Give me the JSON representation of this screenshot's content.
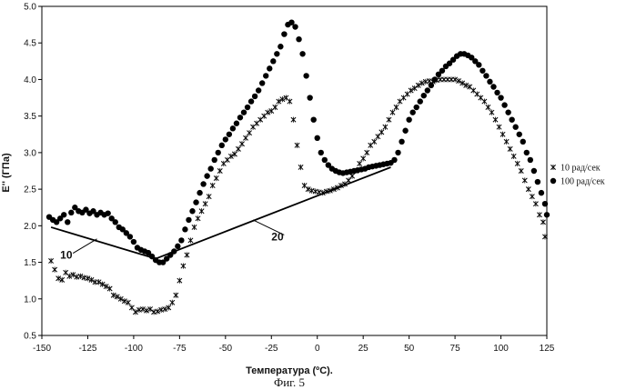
{
  "chart_data": {
    "type": "scatter",
    "xlabel": "Температура (ºC).",
    "ylabel": "E'' (ГПа)",
    "caption": "Фиг. 5",
    "xlim": [
      -150,
      125
    ],
    "ylim": [
      0.5,
      5.0
    ],
    "x_ticks": [
      "-150",
      "-125",
      "-100",
      "-75",
      "-50",
      "-25",
      "0",
      "25",
      "50",
      "75",
      "100",
      "125"
    ],
    "y_ticks": [
      "0.5",
      "1.0",
      "1.5",
      "2.0",
      "2.5",
      "3.0",
      "3.5",
      "4.0",
      "4.5",
      "5.0"
    ],
    "grid": false,
    "legend_position": "right",
    "series": [
      {
        "name": "10 рад/сек",
        "marker": "cross",
        "points": [
          [
            -145,
            1.52
          ],
          [
            -143,
            1.4
          ],
          [
            -141,
            1.28
          ],
          [
            -139,
            1.26
          ],
          [
            -137,
            1.36
          ],
          [
            -135,
            1.31
          ],
          [
            -133,
            1.33
          ],
          [
            -131,
            1.3
          ],
          [
            -129,
            1.31
          ],
          [
            -127,
            1.29
          ],
          [
            -125,
            1.28
          ],
          [
            -123,
            1.26
          ],
          [
            -121,
            1.23
          ],
          [
            -119,
            1.23
          ],
          [
            -117,
            1.2
          ],
          [
            -115,
            1.17
          ],
          [
            -113,
            1.14
          ],
          [
            -111,
            1.05
          ],
          [
            -109,
            1.03
          ],
          [
            -107,
            1.0
          ],
          [
            -105,
            0.97
          ],
          [
            -103,
            0.95
          ],
          [
            -101,
            0.88
          ],
          [
            -99,
            0.82
          ],
          [
            -97,
            0.85
          ],
          [
            -95,
            0.86
          ],
          [
            -93,
            0.84
          ],
          [
            -91,
            0.86
          ],
          [
            -89,
            0.82
          ],
          [
            -87,
            0.83
          ],
          [
            -85,
            0.85
          ],
          [
            -83,
            0.86
          ],
          [
            -81,
            0.88
          ],
          [
            -79,
            0.95
          ],
          [
            -77,
            1.05
          ],
          [
            -75,
            1.25
          ],
          [
            -73,
            1.45
          ],
          [
            -71,
            1.6
          ],
          [
            -69,
            1.8
          ],
          [
            -67,
            1.98
          ],
          [
            -65,
            2.1
          ],
          [
            -63,
            2.2
          ],
          [
            -61,
            2.3
          ],
          [
            -59,
            2.4
          ],
          [
            -57,
            2.55
          ],
          [
            -55,
            2.65
          ],
          [
            -53,
            2.75
          ],
          [
            -51,
            2.85
          ],
          [
            -49,
            2.9
          ],
          [
            -47,
            2.95
          ],
          [
            -45,
            2.98
          ],
          [
            -43,
            3.05
          ],
          [
            -41,
            3.12
          ],
          [
            -39,
            3.2
          ],
          [
            -37,
            3.27
          ],
          [
            -35,
            3.35
          ],
          [
            -33,
            3.4
          ],
          [
            -31,
            3.45
          ],
          [
            -29,
            3.5
          ],
          [
            -27,
            3.55
          ],
          [
            -25,
            3.57
          ],
          [
            -23,
            3.62
          ],
          [
            -21,
            3.7
          ],
          [
            -19,
            3.73
          ],
          [
            -17,
            3.75
          ],
          [
            -15,
            3.7
          ],
          [
            -13,
            3.45
          ],
          [
            -11,
            3.1
          ],
          [
            -9,
            2.8
          ],
          [
            -7,
            2.55
          ],
          [
            -5,
            2.5
          ],
          [
            -3,
            2.48
          ],
          [
            -1,
            2.47
          ],
          [
            1,
            2.46
          ],
          [
            3,
            2.45
          ],
          [
            5,
            2.47
          ],
          [
            7,
            2.48
          ],
          [
            9,
            2.5
          ],
          [
            11,
            2.52
          ],
          [
            13,
            2.55
          ],
          [
            15,
            2.57
          ],
          [
            17,
            2.62
          ],
          [
            19,
            2.68
          ],
          [
            21,
            2.75
          ],
          [
            23,
            2.85
          ],
          [
            25,
            2.92
          ],
          [
            27,
            3.0
          ],
          [
            29,
            3.1
          ],
          [
            31,
            3.15
          ],
          [
            33,
            3.22
          ],
          [
            35,
            3.28
          ],
          [
            37,
            3.35
          ],
          [
            39,
            3.45
          ],
          [
            41,
            3.55
          ],
          [
            43,
            3.62
          ],
          [
            45,
            3.7
          ],
          [
            47,
            3.75
          ],
          [
            49,
            3.8
          ],
          [
            51,
            3.85
          ],
          [
            53,
            3.88
          ],
          [
            55,
            3.92
          ],
          [
            57,
            3.95
          ],
          [
            59,
            3.97
          ],
          [
            61,
            3.98
          ],
          [
            63,
            3.97
          ],
          [
            65,
            3.99
          ],
          [
            67,
            4.0
          ],
          [
            69,
            4.0
          ],
          [
            71,
            4.0
          ],
          [
            73,
            4.0
          ],
          [
            75,
            4.0
          ],
          [
            77,
            3.98
          ],
          [
            79,
            3.95
          ],
          [
            81,
            3.92
          ],
          [
            83,
            3.9
          ],
          [
            85,
            3.85
          ],
          [
            87,
            3.8
          ],
          [
            89,
            3.75
          ],
          [
            91,
            3.7
          ],
          [
            93,
            3.62
          ],
          [
            95,
            3.55
          ],
          [
            97,
            3.45
          ],
          [
            99,
            3.35
          ],
          [
            101,
            3.25
          ],
          [
            103,
            3.15
          ],
          [
            105,
            3.05
          ],
          [
            107,
            2.95
          ],
          [
            109,
            2.85
          ],
          [
            111,
            2.75
          ],
          [
            113,
            2.62
          ],
          [
            115,
            2.5
          ],
          [
            117,
            2.4
          ],
          [
            119,
            2.3
          ],
          [
            121,
            2.15
          ],
          [
            123,
            2.05
          ],
          [
            124,
            1.85
          ]
        ]
      },
      {
        "name": "100 рад/сек",
        "marker": "dot",
        "points": [
          [
            -146,
            2.12
          ],
          [
            -144,
            2.08
          ],
          [
            -142,
            2.05
          ],
          [
            -140,
            2.1
          ],
          [
            -138,
            2.15
          ],
          [
            -136,
            2.05
          ],
          [
            -134,
            2.18
          ],
          [
            -132,
            2.25
          ],
          [
            -130,
            2.2
          ],
          [
            -128,
            2.18
          ],
          [
            -126,
            2.22
          ],
          [
            -124,
            2.17
          ],
          [
            -122,
            2.2
          ],
          [
            -120,
            2.15
          ],
          [
            -118,
            2.18
          ],
          [
            -116,
            2.15
          ],
          [
            -114,
            2.17
          ],
          [
            -112,
            2.1
          ],
          [
            -110,
            2.05
          ],
          [
            -108,
            1.98
          ],
          [
            -106,
            1.95
          ],
          [
            -104,
            1.9
          ],
          [
            -102,
            1.85
          ],
          [
            -100,
            1.78
          ],
          [
            -98,
            1.7
          ],
          [
            -96,
            1.67
          ],
          [
            -94,
            1.65
          ],
          [
            -92,
            1.63
          ],
          [
            -90,
            1.58
          ],
          [
            -88,
            1.53
          ],
          [
            -86,
            1.5
          ],
          [
            -84,
            1.5
          ],
          [
            -82,
            1.55
          ],
          [
            -80,
            1.6
          ],
          [
            -78,
            1.65
          ],
          [
            -76,
            1.72
          ],
          [
            -74,
            1.8
          ],
          [
            -72,
            1.95
          ],
          [
            -70,
            2.08
          ],
          [
            -68,
            2.2
          ],
          [
            -66,
            2.32
          ],
          [
            -64,
            2.45
          ],
          [
            -62,
            2.57
          ],
          [
            -60,
            2.68
          ],
          [
            -58,
            2.78
          ],
          [
            -56,
            2.9
          ],
          [
            -54,
            3.0
          ],
          [
            -52,
            3.1
          ],
          [
            -50,
            3.18
          ],
          [
            -48,
            3.25
          ],
          [
            -46,
            3.33
          ],
          [
            -44,
            3.4
          ],
          [
            -42,
            3.48
          ],
          [
            -40,
            3.55
          ],
          [
            -38,
            3.62
          ],
          [
            -36,
            3.7
          ],
          [
            -34,
            3.77
          ],
          [
            -32,
            3.85
          ],
          [
            -30,
            3.95
          ],
          [
            -28,
            4.05
          ],
          [
            -26,
            4.15
          ],
          [
            -24,
            4.25
          ],
          [
            -22,
            4.35
          ],
          [
            -20,
            4.45
          ],
          [
            -18,
            4.62
          ],
          [
            -16,
            4.75
          ],
          [
            -14,
            4.78
          ],
          [
            -12,
            4.72
          ],
          [
            -10,
            4.55
          ],
          [
            -8,
            4.35
          ],
          [
            -6,
            4.05
          ],
          [
            -4,
            3.75
          ],
          [
            -2,
            3.45
          ],
          [
            0,
            3.2
          ],
          [
            2,
            3.0
          ],
          [
            4,
            2.9
          ],
          [
            6,
            2.83
          ],
          [
            8,
            2.78
          ],
          [
            10,
            2.75
          ],
          [
            12,
            2.73
          ],
          [
            14,
            2.72
          ],
          [
            16,
            2.73
          ],
          [
            18,
            2.74
          ],
          [
            20,
            2.75
          ],
          [
            22,
            2.76
          ],
          [
            24,
            2.77
          ],
          [
            26,
            2.78
          ],
          [
            28,
            2.8
          ],
          [
            30,
            2.81
          ],
          [
            32,
            2.82
          ],
          [
            34,
            2.83
          ],
          [
            36,
            2.84
          ],
          [
            38,
            2.85
          ],
          [
            40,
            2.86
          ],
          [
            42,
            2.9
          ],
          [
            44,
            3.0
          ],
          [
            46,
            3.15
          ],
          [
            48,
            3.3
          ],
          [
            50,
            3.45
          ],
          [
            52,
            3.55
          ],
          [
            54,
            3.62
          ],
          [
            56,
            3.7
          ],
          [
            58,
            3.78
          ],
          [
            60,
            3.85
          ],
          [
            62,
            3.92
          ],
          [
            64,
            4.0
          ],
          [
            66,
            4.07
          ],
          [
            68,
            4.12
          ],
          [
            70,
            4.18
          ],
          [
            72,
            4.22
          ],
          [
            74,
            4.27
          ],
          [
            76,
            4.32
          ],
          [
            78,
            4.35
          ],
          [
            80,
            4.35
          ],
          [
            82,
            4.33
          ],
          [
            84,
            4.3
          ],
          [
            86,
            4.25
          ],
          [
            88,
            4.2
          ],
          [
            90,
            4.12
          ],
          [
            92,
            4.05
          ],
          [
            94,
            3.97
          ],
          [
            96,
            3.9
          ],
          [
            98,
            3.82
          ],
          [
            100,
            3.75
          ],
          [
            102,
            3.65
          ],
          [
            104,
            3.55
          ],
          [
            106,
            3.45
          ],
          [
            108,
            3.35
          ],
          [
            110,
            3.25
          ],
          [
            112,
            3.15
          ],
          [
            114,
            3.0
          ],
          [
            116,
            2.9
          ],
          [
            118,
            2.75
          ],
          [
            120,
            2.6
          ],
          [
            122,
            2.45
          ],
          [
            124,
            2.3
          ],
          [
            125,
            2.15
          ]
        ]
      }
    ],
    "annotation_lines": [
      {
        "label": "10",
        "from": [
          -145,
          1.98
        ],
        "to": [
          -88,
          1.55
        ]
      },
      {
        "label": "20",
        "from": [
          -88,
          1.55
        ],
        "to": [
          40,
          2.8
        ]
      }
    ],
    "annotation_labels": [
      {
        "text": "10",
        "at": [
          -140,
          1.55
        ],
        "leader_to": [
          -120,
          1.82
        ]
      },
      {
        "text": "20",
        "at": [
          -25,
          1.8
        ],
        "leader_to": [
          -35,
          2.08
        ]
      }
    ]
  }
}
